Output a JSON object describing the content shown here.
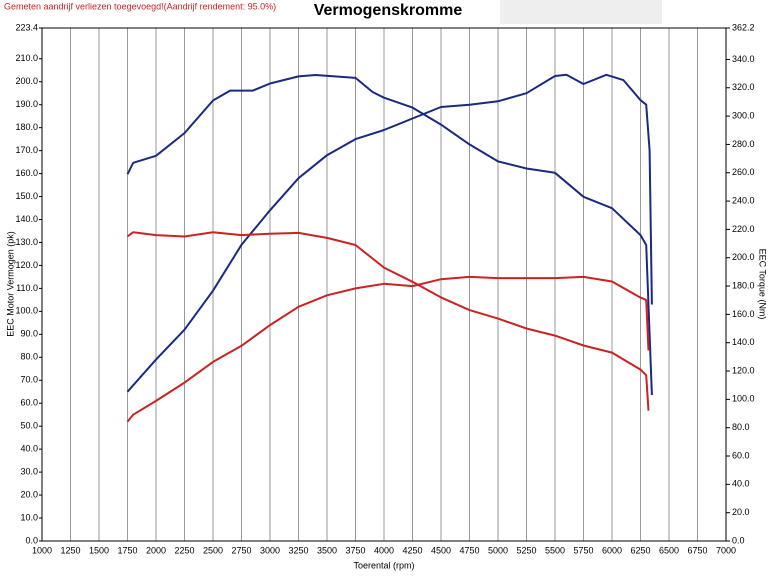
{
  "chart_data": {
    "type": "line",
    "title": "Vermogenskromme",
    "subtitle": "Gemeten aandrijf verliezen toegevoegd!(Aandrijf rendement: 95.0%)",
    "x_label": "Toerental (rpm)",
    "y_label": "EEC Motor Vermogen (pk)",
    "y2_label": "EEC Torque (Nm)",
    "xlim": [
      1000,
      7000
    ],
    "xticks": [
      1000,
      1250,
      1500,
      1750,
      2000,
      2250,
      2500,
      2750,
      3000,
      3250,
      3500,
      3750,
      4000,
      4250,
      4500,
      4750,
      5000,
      5250,
      5500,
      5750,
      6000,
      6250,
      6500,
      6750,
      7000
    ],
    "ylim": [
      0,
      223.4
    ],
    "yticks": [
      {
        "value": 0,
        "label": "0.0"
      },
      {
        "value": 10,
        "label": "10.0"
      },
      {
        "value": 20,
        "label": "20.0"
      },
      {
        "value": 30,
        "label": "30.0"
      },
      {
        "value": 40,
        "label": "40.0"
      },
      {
        "value": 50,
        "label": "50.0"
      },
      {
        "value": 60,
        "label": "60.0"
      },
      {
        "value": 70,
        "label": "70.0"
      },
      {
        "value": 80,
        "label": "80.0"
      },
      {
        "value": 90,
        "label": "90.0"
      },
      {
        "value": 100,
        "label": "100.0"
      },
      {
        "value": 110,
        "label": "110.0"
      },
      {
        "value": 120,
        "label": "120.0"
      },
      {
        "value": 130,
        "label": "130.0"
      },
      {
        "value": 140,
        "label": "140.0"
      },
      {
        "value": 150,
        "label": "150.0"
      },
      {
        "value": 160,
        "label": "160.0"
      },
      {
        "value": 170,
        "label": "170.0"
      },
      {
        "value": 180,
        "label": "180.0"
      },
      {
        "value": 190,
        "label": "190.0"
      },
      {
        "value": 200,
        "label": "200.0"
      },
      {
        "value": 210,
        "label": "210.0"
      },
      223.4
    ],
    "y2lim": [
      0,
      362.2
    ],
    "y2ticks": [
      {
        "value": 0,
        "label": "0.0"
      },
      {
        "value": 20,
        "label": "20.0"
      },
      {
        "value": 40,
        "label": "40.0"
      },
      {
        "value": 60,
        "label": "60.0"
      },
      {
        "value": 80,
        "label": "80.0"
      },
      {
        "value": 100,
        "label": "100.0"
      },
      {
        "value": 120,
        "label": "120.0"
      },
      {
        "value": 140,
        "label": "140.0"
      },
      {
        "value": 160,
        "label": "160.0"
      },
      {
        "value": 180,
        "label": "180.0"
      },
      {
        "value": 200,
        "label": "200.0"
      },
      {
        "value": 220,
        "label": "220.0"
      },
      {
        "value": 240,
        "label": "240.0"
      },
      {
        "value": 260,
        "label": "260.0"
      },
      {
        "value": 280,
        "label": "280.0"
      },
      {
        "value": 300,
        "label": "300.0"
      },
      {
        "value": 320,
        "label": "320.0"
      },
      {
        "value": 340,
        "label": "340.0"
      },
      362.2
    ],
    "grid": true,
    "series": [
      {
        "color": "#1a2a80",
        "axis": "y",
        "x": [
          1750,
          2000,
          2250,
          2500,
          2750,
          3000,
          3250,
          3500,
          3750,
          4000,
          4250,
          4500,
          4750,
          5000,
          5250,
          5500,
          5600,
          5750,
          5950,
          6100,
          6250,
          6300,
          6330,
          6350
        ],
        "values": [
          65,
          79,
          92,
          109,
          129,
          144,
          158,
          168,
          175,
          179,
          184,
          189,
          190,
          191.5,
          195,
          202.5,
          203,
          199,
          203,
          200.7,
          192,
          190,
          170,
          103
        ]
      },
      {
        "color": "#1a2a80",
        "axis": "y2",
        "x": [
          1750,
          1800,
          2000,
          2250,
          2500,
          2650,
          2850,
          3000,
          3250,
          3400,
          3750,
          3900,
          4000,
          4250,
          4500,
          4750,
          5000,
          5250,
          5500,
          5750,
          6000,
          6250,
          6300,
          6350
        ],
        "values": [
          259,
          267,
          272,
          288,
          311,
          318,
          318,
          323,
          328,
          329,
          327,
          317,
          313,
          306,
          294,
          280,
          268,
          263,
          260,
          243,
          235,
          216,
          209,
          103
        ]
      },
      {
        "color": "#cc2222",
        "axis": "y",
        "x": [
          1750,
          1800,
          2000,
          2250,
          2500,
          2750,
          3000,
          3250,
          3500,
          3750,
          4000,
          4250,
          4500,
          4750,
          5000,
          5500,
          5750,
          6000,
          6250,
          6300,
          6320
        ],
        "values": [
          52,
          55,
          61,
          69,
          78,
          85,
          94,
          102,
          107,
          110,
          112,
          111,
          114,
          115,
          114.5,
          114.5,
          115,
          113,
          106,
          105,
          83
        ]
      },
      {
        "color": "#cc2222",
        "axis": "y2",
        "x": [
          1750,
          1800,
          2000,
          2250,
          2500,
          2750,
          3000,
          3250,
          3500,
          3750,
          4000,
          4250,
          4500,
          4750,
          5000,
          5250,
          5500,
          5750,
          6000,
          6250,
          6300,
          6320
        ],
        "values": [
          215,
          218,
          216,
          215,
          218,
          216,
          217,
          217.5,
          214,
          209,
          193,
          183,
          172,
          163,
          157,
          150,
          145,
          138,
          133,
          121,
          117,
          92
        ]
      }
    ]
  }
}
